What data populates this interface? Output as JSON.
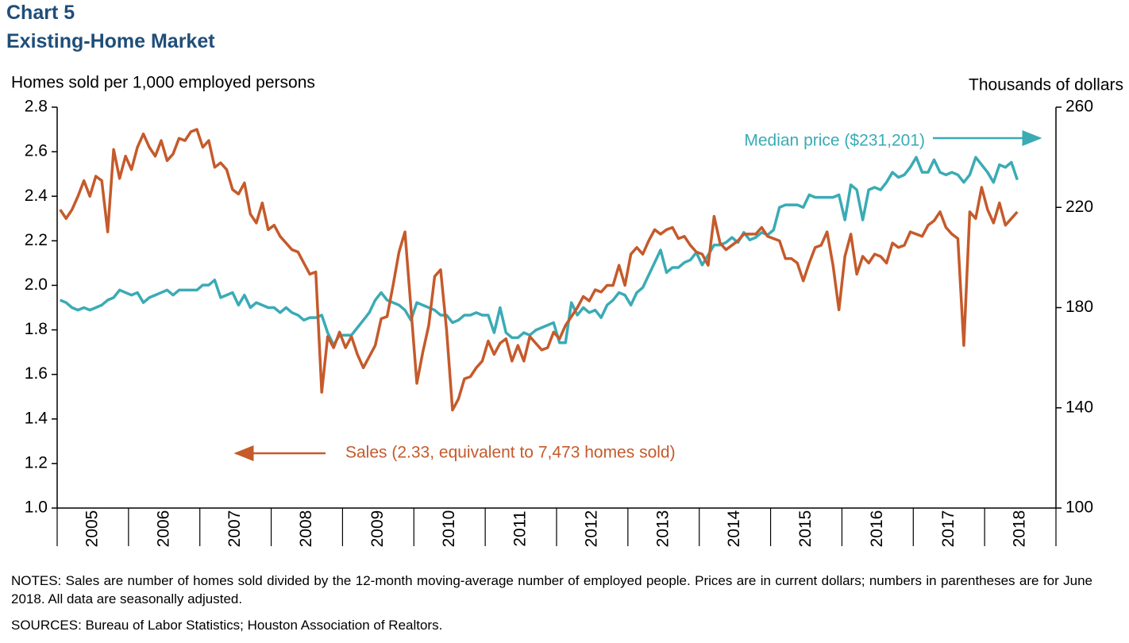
{
  "chart_data": {
    "type": "line",
    "title": "Chart 5",
    "subtitle": "Existing-Home Market",
    "y_label": "Homes sold per 1,000 employed persons",
    "y2_label": "Thousands of dollars",
    "annotations": [
      "Median price ($231,201)",
      "Sales (2.33, equivalent to 7,473 homes sold)"
    ],
    "notes": "NOTES: Sales are number of homes sold divided by the 12-month moving-average number of employed people. Prices are in current dollars; numbers in parentheses are for June 2018. All data are seasonally adjusted.",
    "sources": "SOURCES: Bureau of Labor Statistics; Houston Association of Realtors.",
    "categories": [
      null,
      null,
      null,
      null,
      null,
      null,
      "2005",
      null,
      null,
      null,
      null,
      null,
      null,
      null,
      null,
      null,
      null,
      null,
      "2006",
      null,
      null,
      null,
      null,
      null,
      null,
      null,
      null,
      null,
      null,
      null,
      "2007",
      null,
      null,
      null,
      null,
      null,
      null,
      null,
      null,
      null,
      null,
      null,
      "2008",
      null,
      null,
      null,
      null,
      null,
      null,
      null,
      null,
      null,
      null,
      null,
      "2009",
      null,
      null,
      null,
      null,
      null,
      null,
      null,
      null,
      null,
      null,
      null,
      "2010",
      null,
      null,
      null,
      null,
      null,
      null,
      null,
      null,
      null,
      null,
      null,
      "2011",
      null,
      null,
      null,
      null,
      null,
      null,
      null,
      null,
      null,
      null,
      null,
      "2012",
      null,
      null,
      null,
      null,
      null,
      null,
      null,
      null,
      null,
      null,
      null,
      "2013",
      null,
      null,
      null,
      null,
      null,
      null,
      null,
      null,
      null,
      null,
      null,
      "2014",
      null,
      null,
      null,
      null,
      null,
      null,
      null,
      null,
      null,
      null,
      null,
      "2015",
      null,
      null,
      null,
      null,
      null,
      null,
      null,
      null,
      null,
      null,
      null,
      "2016",
      null,
      null,
      null,
      null,
      null,
      null,
      null,
      null,
      null,
      null,
      null,
      "2017",
      null,
      null,
      null,
      null,
      null,
      null,
      null,
      null,
      null,
      null,
      null,
      "2018",
      null,
      null,
      null,
      null,
      null
    ],
    "series": [
      {
        "name": "Sales",
        "color": "#c55a2b",
        "axis": "y",
        "values": [
          2.34,
          2.3,
          2.34,
          2.4,
          2.47,
          2.4,
          2.49,
          2.47,
          2.24,
          2.61,
          2.48,
          2.58,
          2.52,
          2.62,
          2.68,
          2.62,
          2.58,
          2.65,
          2.56,
          2.59,
          2.66,
          2.65,
          2.69,
          2.7,
          2.62,
          2.65,
          2.53,
          2.55,
          2.52,
          2.43,
          2.41,
          2.46,
          2.32,
          2.28,
          2.37,
          2.25,
          2.27,
          2.22,
          2.19,
          2.16,
          2.15,
          2.1,
          2.05,
          2.06,
          1.52,
          1.77,
          1.72,
          1.79,
          1.72,
          1.77,
          1.69,
          1.63,
          1.68,
          1.73,
          1.85,
          1.86,
          2.0,
          2.15,
          2.24,
          1.9,
          1.56,
          1.7,
          1.82,
          2.04,
          2.07,
          1.8,
          1.44,
          1.49,
          1.58,
          1.59,
          1.63,
          1.66,
          1.75,
          1.69,
          1.74,
          1.76,
          1.66,
          1.73,
          1.66,
          1.77,
          1.74,
          1.71,
          1.72,
          1.79,
          1.76,
          1.82,
          1.86,
          1.9,
          1.95,
          1.93,
          1.98,
          1.97,
          2.0,
          2.0,
          2.09,
          2.0,
          2.14,
          2.17,
          2.14,
          2.2,
          2.25,
          2.23,
          2.25,
          2.26,
          2.21,
          2.22,
          2.18,
          2.15,
          2.14,
          2.09,
          2.31,
          2.19,
          2.16,
          2.18,
          2.2,
          2.23,
          2.23,
          2.23,
          2.26,
          2.22,
          2.21,
          2.2,
          2.12,
          2.12,
          2.1,
          2.02,
          2.1,
          2.17,
          2.18,
          2.24,
          2.09,
          1.89,
          2.13,
          2.23,
          2.05,
          2.13,
          2.1,
          2.14,
          2.13,
          2.1,
          2.19,
          2.17,
          2.18,
          2.24,
          2.23,
          2.22,
          2.27,
          2.29,
          2.33,
          2.26,
          2.23,
          2.21,
          1.73,
          2.33,
          2.3,
          2.44,
          2.34,
          2.28,
          2.37,
          2.27,
          2.3,
          2.33,
          null,
          null,
          null,
          null,
          null,
          null
        ]
      },
      {
        "name": "Median price",
        "color": "#3aabb5",
        "axis": "y2",
        "values": [
          183,
          182,
          180,
          179,
          180,
          179,
          180,
          181,
          183,
          184,
          187,
          186,
          185,
          186,
          182,
          184,
          185,
          186,
          187,
          185,
          187,
          187,
          187,
          187,
          189,
          189,
          191,
          184,
          185,
          186,
          181,
          185,
          180,
          182,
          181,
          180,
          180,
          178,
          180,
          178,
          177,
          175,
          176,
          176,
          177,
          170,
          165,
          169,
          169,
          169,
          172,
          175,
          178,
          183,
          186,
          183,
          182,
          181,
          179,
          175,
          182,
          181,
          180,
          179,
          177,
          177,
          174,
          175,
          177,
          177,
          178,
          177,
          177,
          170,
          180,
          170,
          168,
          168,
          170,
          169,
          171,
          172,
          173,
          174,
          166,
          166,
          182,
          177,
          180,
          178,
          179,
          176,
          181,
          183,
          186,
          185,
          181,
          186,
          188,
          193,
          198,
          203,
          194,
          196,
          196,
          198,
          199,
          202,
          197,
          201,
          205,
          205,
          206,
          208,
          206,
          210,
          207,
          208,
          210,
          209,
          211,
          220,
          221,
          221,
          221,
          220,
          225,
          224,
          224,
          224,
          224,
          225,
          215,
          229,
          227,
          215,
          227,
          228,
          227,
          230,
          234,
          232,
          233,
          236,
          240,
          234,
          234,
          239,
          234,
          233,
          234,
          233,
          230,
          233,
          240,
          237,
          234,
          230,
          237,
          236,
          238,
          231,
          null,
          null,
          null,
          null,
          null,
          null
        ]
      }
    ],
    "ylim": [
      1.0,
      2.8
    ],
    "yticks": [
      {
        "value": 1,
        "label": "1.0"
      },
      1.2,
      1.4,
      1.6,
      1.8,
      {
        "value": 2,
        "label": "2.0"
      },
      2.2,
      2.4,
      2.6,
      2.8
    ],
    "y2lim": [
      100,
      260
    ],
    "y2ticks": [
      100,
      140,
      180,
      220,
      260
    ],
    "grid": false
  }
}
